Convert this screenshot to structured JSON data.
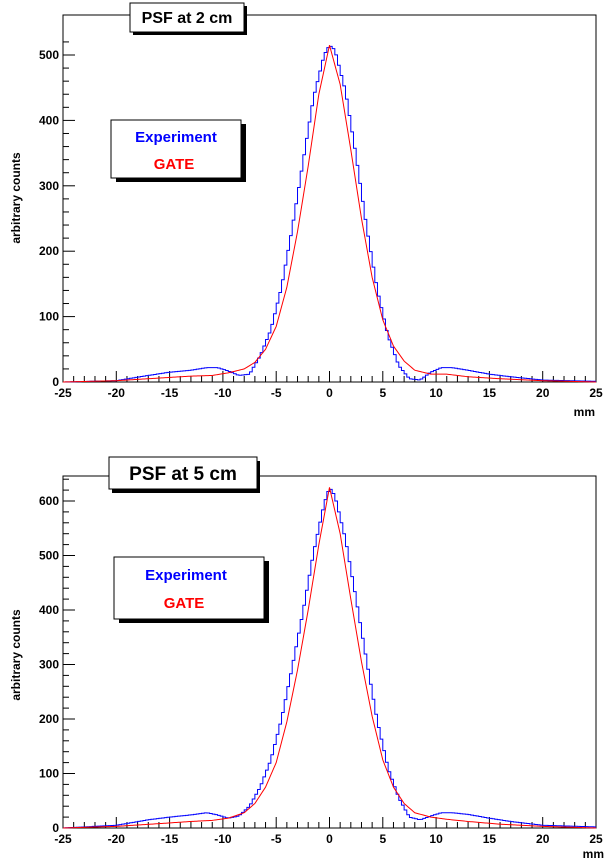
{
  "chart_data": [
    {
      "type": "line",
      "title": "PSF at 2 cm",
      "xlabel": "mm",
      "ylabel": "arbitrary counts",
      "xlim": [
        -25,
        25
      ],
      "ylim": [
        0,
        530
      ],
      "xticks": [
        -25,
        -20,
        -15,
        -10,
        -5,
        0,
        5,
        10,
        15,
        20,
        25
      ],
      "xtick_labels": [
        "-25",
        "-20",
        "-15",
        "-10",
        "-5",
        "0",
        "5",
        "10",
        "15",
        "20",
        "25"
      ],
      "yticks": [
        0,
        100,
        200,
        300,
        400,
        500
      ],
      "ytick_labels": [
        "0",
        "100",
        "200",
        "300",
        "400",
        "500"
      ],
      "legend": {
        "position": "upper-left",
        "entries": [
          "Experiment",
          "GATE"
        ]
      },
      "series": [
        {
          "name": "Experiment",
          "color": "#0000ff",
          "style": "histogram",
          "points": [
            [
              -25,
              0
            ],
            [
              -20,
              2
            ],
            [
              -17,
              10
            ],
            [
              -15,
              15
            ],
            [
              -13,
              18
            ],
            [
              -11.5,
              22
            ],
            [
              -10.5,
              22
            ],
            [
              -9.5,
              17
            ],
            [
              -8.5,
              10
            ],
            [
              -7.5,
              12
            ],
            [
              -6.5,
              40
            ],
            [
              -5.5,
              80
            ],
            [
              -4.5,
              145
            ],
            [
              -3.5,
              235
            ],
            [
              -2.5,
              335
            ],
            [
              -1.5,
              435
            ],
            [
              -0.5,
              500
            ],
            [
              0,
              515
            ],
            [
              0.5,
              508
            ],
            [
              1.5,
              445
            ],
            [
              2.5,
              345
            ],
            [
              3.5,
              235
            ],
            [
              4.5,
              140
            ],
            [
              5.5,
              70
            ],
            [
              6.5,
              25
            ],
            [
              7.5,
              5
            ],
            [
              8.5,
              3
            ],
            [
              9.5,
              15
            ],
            [
              10.5,
              22
            ],
            [
              11.5,
              22
            ],
            [
              13,
              18
            ],
            [
              15,
              12
            ],
            [
              17,
              8
            ],
            [
              20,
              3
            ],
            [
              25,
              1
            ]
          ]
        },
        {
          "name": "GATE",
          "color": "#ff0000",
          "style": "line",
          "points": [
            [
              -25,
              0
            ],
            [
              -20,
              2
            ],
            [
              -16,
              6
            ],
            [
              -13,
              9
            ],
            [
              -11,
              10
            ],
            [
              -9.5,
              14
            ],
            [
              -8,
              20
            ],
            [
              -7,
              30
            ],
            [
              -6,
              50
            ],
            [
              -5,
              85
            ],
            [
              -4,
              145
            ],
            [
              -3,
              230
            ],
            [
              -2,
              330
            ],
            [
              -1,
              440
            ],
            [
              0,
              515
            ],
            [
              1,
              455
            ],
            [
              2,
              355
            ],
            [
              3,
              250
            ],
            [
              4,
              160
            ],
            [
              5,
              95
            ],
            [
              6,
              55
            ],
            [
              7,
              32
            ],
            [
              8,
              18
            ],
            [
              9.5,
              12
            ],
            [
              11,
              12
            ],
            [
              13,
              8
            ],
            [
              16,
              5
            ],
            [
              20,
              2
            ],
            [
              25,
              0
            ]
          ]
        }
      ]
    },
    {
      "type": "line",
      "title": "PSF at 5 cm",
      "xlabel": "mm",
      "ylabel": "arbitrary counts",
      "xlim": [
        -25,
        25
      ],
      "ylim": [
        0,
        650
      ],
      "xticks": [
        -25,
        -20,
        -15,
        -10,
        -5,
        0,
        5,
        10,
        15,
        20,
        25
      ],
      "xtick_labels": [
        "-25",
        "-20",
        "-15",
        "-10",
        "-5",
        "0",
        "5",
        "10",
        "15",
        "20",
        "25"
      ],
      "yticks": [
        0,
        100,
        200,
        300,
        400,
        500,
        600
      ],
      "ytick_labels": [
        "0",
        "100",
        "200",
        "300",
        "400",
        "500",
        "600"
      ],
      "legend": {
        "position": "upper-left",
        "entries": [
          "Experiment",
          "GATE"
        ]
      },
      "series": [
        {
          "name": "Experiment",
          "color": "#0000ff",
          "style": "histogram",
          "points": [
            [
              -25,
              0
            ],
            [
              -20,
              5
            ],
            [
              -17,
              15
            ],
            [
              -15,
              20
            ],
            [
              -13,
              24
            ],
            [
              -11.5,
              28
            ],
            [
              -10.5,
              24
            ],
            [
              -9.5,
              18
            ],
            [
              -8.5,
              22
            ],
            [
              -7.5,
              40
            ],
            [
              -6.5,
              75
            ],
            [
              -5.5,
              125
            ],
            [
              -4.5,
              200
            ],
            [
              -3.5,
              295
            ],
            [
              -2.5,
              395
            ],
            [
              -1.5,
              505
            ],
            [
              -0.5,
              595
            ],
            [
              0,
              625
            ],
            [
              0.5,
              610
            ],
            [
              1.5,
              530
            ],
            [
              2.5,
              420
            ],
            [
              3.5,
              305
            ],
            [
              4.5,
              195
            ],
            [
              5.5,
              110
            ],
            [
              6.5,
              55
            ],
            [
              7.5,
              20
            ],
            [
              8.5,
              15
            ],
            [
              9.5,
              22
            ],
            [
              10.5,
              28
            ],
            [
              11.5,
              28
            ],
            [
              13,
              25
            ],
            [
              15,
              18
            ],
            [
              17,
              12
            ],
            [
              20,
              5
            ],
            [
              25,
              2
            ]
          ]
        },
        {
          "name": "GATE",
          "color": "#ff0000",
          "style": "line",
          "points": [
            [
              -25,
              0
            ],
            [
              -20,
              3
            ],
            [
              -16,
              8
            ],
            [
              -13,
              12
            ],
            [
              -11,
              14
            ],
            [
              -9.5,
              18
            ],
            [
              -8,
              28
            ],
            [
              -7,
              45
            ],
            [
              -6,
              75
            ],
            [
              -5,
              120
            ],
            [
              -4,
              195
            ],
            [
              -3,
              290
            ],
            [
              -2,
              400
            ],
            [
              -1,
              520
            ],
            [
              0,
              625
            ],
            [
              1,
              540
            ],
            [
              2,
              420
            ],
            [
              3,
              305
            ],
            [
              4,
              205
            ],
            [
              5,
              125
            ],
            [
              6,
              75
            ],
            [
              7,
              45
            ],
            [
              8,
              28
            ],
            [
              9.5,
              20
            ],
            [
              11,
              16
            ],
            [
              13,
              12
            ],
            [
              16,
              7
            ],
            [
              20,
              3
            ],
            [
              25,
              0
            ]
          ]
        }
      ]
    }
  ]
}
